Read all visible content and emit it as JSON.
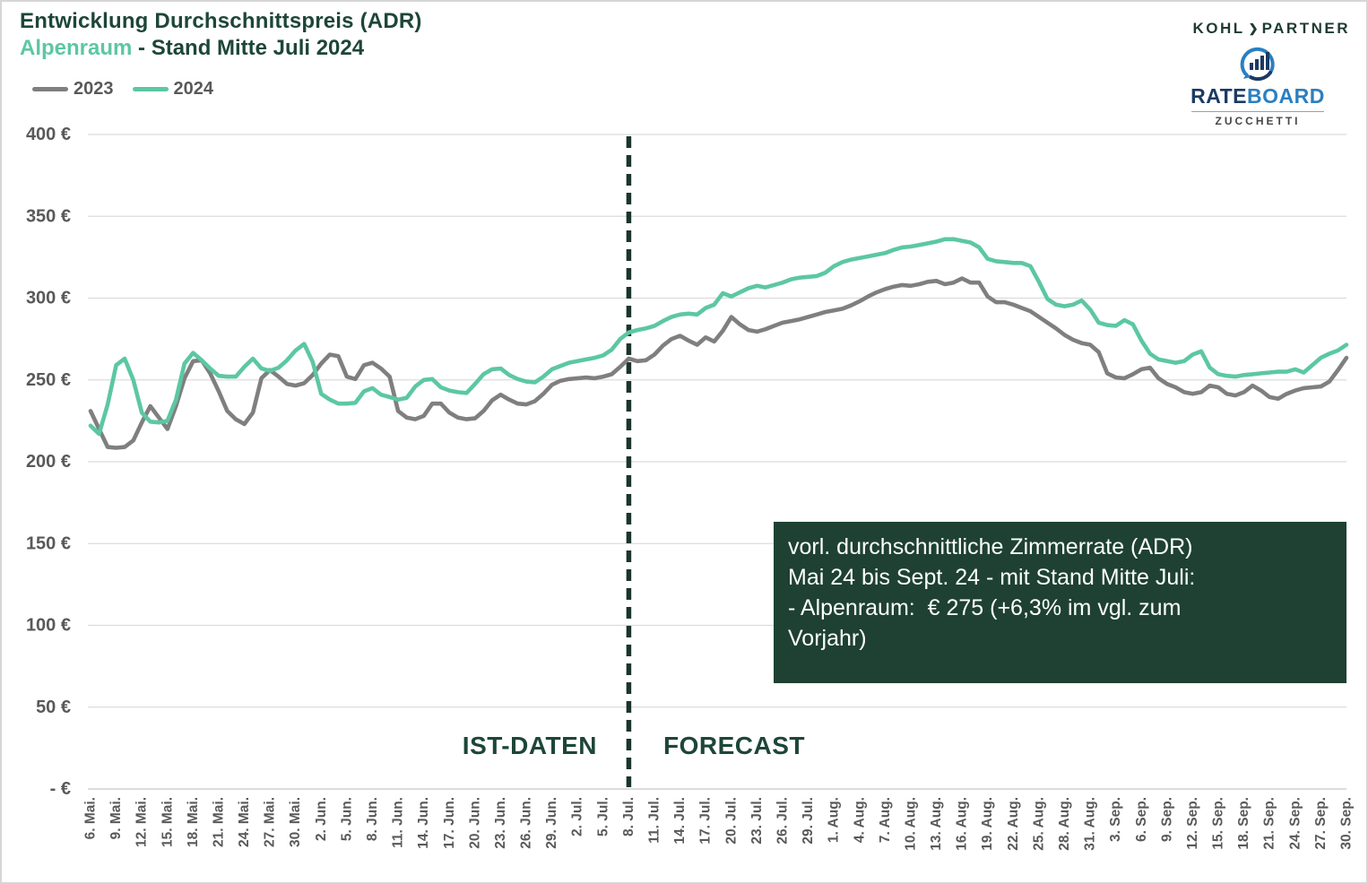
{
  "colors": {
    "dark_green": "#1d4639",
    "accent_green": "#5cc7a3",
    "line_gray": "#7f7f7f",
    "axis_text": "#595959",
    "grid": "#dcdcdc",
    "annotation_bg": "#1e4134",
    "divider": "#1a352b",
    "rb_navy": "#1b3a63",
    "rb_blue": "#2b7fc0",
    "border": "#d6d6d6"
  },
  "header": {
    "title": "Entwicklung Durchschnittspreis (ADR)",
    "subtitle_region": "Alpenraum",
    "subtitle_rest": " - Stand Mitte Juli 2024"
  },
  "branding": {
    "kohl_partner": {
      "left": "KOHL",
      "arrow": "❯",
      "right": "PARTNER"
    },
    "rateboard": {
      "rate": "RATE",
      "board": "BOARD",
      "sub": "ZUCCHETTI"
    }
  },
  "phase_labels": {
    "left": "IST-DATEN",
    "right": "FORECAST"
  },
  "annotation": {
    "lines": [
      "vorl. durchschnittliche Zimmerrate (ADR)",
      "Mai 24 bis Sept. 24 - mit Stand Mitte Juli:",
      "- Alpenraum:  € 275 (+6,3% im vgl. zum",
      "Vorjahr)"
    ]
  },
  "chart_data": {
    "type": "line",
    "title": "Entwicklung Durchschnittspreis (ADR) – Alpenraum, Stand Mitte Juli 2024",
    "x_unit": "day",
    "x_start_label": "6. Mai.",
    "x_end_label": "30. Sep.",
    "x_tick_step_days": 3,
    "x_tick_labels": [
      "6. Mai.",
      "9. Mai.",
      "12. Mai.",
      "15. Mai.",
      "18. Mai.",
      "21. Mai.",
      "24. Mai.",
      "27. Mai.",
      "30. Mai.",
      "2. Jun.",
      "5. Jun.",
      "8. Jun.",
      "11. Jun.",
      "14. Jun.",
      "17. Jun.",
      "20. Jun.",
      "23. Jun.",
      "26. Jun.",
      "29. Jun.",
      "2. Jul.",
      "5. Jul.",
      "8. Jul.",
      "11. Jul.",
      "14. Jul.",
      "17. Jul.",
      "20. Jul.",
      "23. Jul.",
      "26. Jul.",
      "29. Jul.",
      "1. Aug.",
      "4. Aug.",
      "7. Aug.",
      "10. Aug.",
      "13. Aug.",
      "16. Aug.",
      "19. Aug.",
      "22. Aug.",
      "25. Aug.",
      "28. Aug.",
      "31. Aug.",
      "3. Sep.",
      "6. Sep.",
      "9. Sep.",
      "12. Sep.",
      "15. Sep.",
      "18. Sep.",
      "21. Sep.",
      "24. Sep.",
      "27. Sep.",
      "30. Sep."
    ],
    "y_tick_labels": [
      "- €",
      "50 €",
      "100 €",
      "150 €",
      "200 €",
      "250 €",
      "300 €",
      "350 €",
      "400 €"
    ],
    "ylim": [
      0,
      400
    ],
    "grid": "horizontal",
    "legend_position": "top-left",
    "forecast_divider_label": "8. Jul.",
    "series": [
      {
        "name": "2023",
        "color": "#7f7f7f",
        "values": [
          231,
          220,
          209,
          208.5,
          209,
          213,
          224,
          234,
          227,
          220,
          234,
          251,
          261.5,
          262,
          254,
          243,
          231,
          226,
          223,
          230,
          251,
          256,
          252,
          247.5,
          246.5,
          248,
          253,
          260,
          265.5,
          264.5,
          252,
          250.5,
          259,
          260.5,
          257,
          252,
          231,
          227,
          226,
          228,
          235.5,
          235.5,
          230,
          227,
          226,
          226.5,
          231,
          237.5,
          241,
          238,
          235.5,
          235,
          237,
          241.5,
          247,
          249.5,
          250.5,
          251,
          251.5,
          251,
          252,
          253.5,
          258,
          263,
          261.5,
          262,
          265.5,
          271,
          275,
          277,
          274,
          271.5,
          276,
          273.5,
          280,
          288.5,
          284,
          280.5,
          279.5,
          281,
          283,
          285,
          286,
          287,
          288.5,
          290,
          291.5,
          292.5,
          293.5,
          295.5,
          298,
          301,
          303.5,
          305.5,
          307,
          308,
          307.5,
          308.5,
          310,
          310.5,
          308.5,
          309.5,
          312,
          309.5,
          309.5,
          301,
          297.5,
          297.5,
          296,
          294,
          292,
          288.5,
          285,
          281.5,
          277.5,
          274.5,
          272.5,
          271.5,
          267,
          254,
          251.5,
          251,
          253.5,
          256.5,
          257.5,
          251,
          247.5,
          245.5,
          242.5,
          241.5,
          242.5,
          246.5,
          245.5,
          241.5,
          240.5,
          242.5,
          246.5,
          243.5,
          239.5,
          238.5,
          241.5,
          243.5,
          245,
          245.5,
          246,
          249,
          256,
          263.5
        ]
      },
      {
        "name": "2024",
        "color": "#5cc7a3",
        "values": [
          222,
          217,
          235,
          259,
          263,
          250,
          230,
          224.5,
          224,
          225,
          238,
          260,
          266.5,
          262,
          257,
          252.5,
          252,
          252,
          258,
          263,
          257,
          255.5,
          257.5,
          262,
          268,
          272,
          261,
          241.5,
          238,
          235.5,
          235.5,
          236,
          243,
          245,
          241,
          239.5,
          238,
          239,
          246,
          250,
          250.5,
          245.5,
          243.5,
          242.5,
          242,
          247.5,
          253.5,
          256.5,
          257,
          253,
          250.5,
          249,
          248.5,
          252,
          256.5,
          258.5,
          260.5,
          261.5,
          262.5,
          263.5,
          265,
          268.5,
          275,
          279,
          280.5,
          281.5,
          283,
          286,
          288.5,
          290,
          290.5,
          290,
          294,
          296,
          303,
          301,
          303.5,
          306,
          307.5,
          306.5,
          308,
          309.5,
          311.5,
          312.5,
          313,
          313.5,
          315.5,
          319.5,
          322,
          323.5,
          324.5,
          325.5,
          326.5,
          327.5,
          329.5,
          331,
          331.5,
          332.5,
          333.5,
          334.5,
          336,
          336,
          335,
          334,
          331,
          324,
          322.5,
          322,
          321.5,
          321.5,
          319.5,
          310,
          299.5,
          296,
          295,
          296,
          298.5,
          293,
          285,
          283.5,
          283,
          286.5,
          284,
          274,
          266,
          262.5,
          261.5,
          260.5,
          261.5,
          265.5,
          267.5,
          257.5,
          253.5,
          252.5,
          252,
          253,
          253.5,
          254,
          254.5,
          255,
          255,
          256.5,
          254.5,
          259,
          263.5,
          266,
          268,
          271.5
        ]
      }
    ]
  }
}
